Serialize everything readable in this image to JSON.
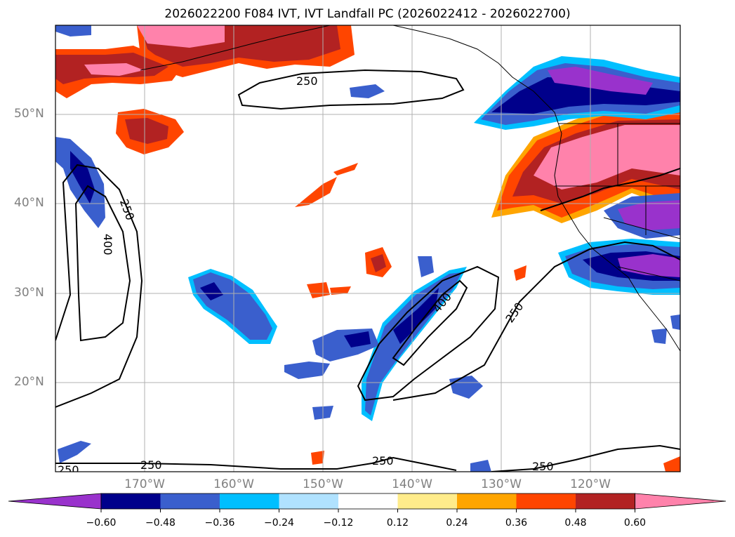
{
  "title": "2026022200 F084 IVT, IVT Landfall PC (2026022412 - 2026022700)",
  "map": {
    "lon_range": [
      -180,
      -110
    ],
    "lat_range": [
      10,
      60
    ],
    "lat_ticks": [
      "50°N",
      "40°N",
      "30°N",
      "20°N"
    ],
    "lon_ticks": [
      "170°W",
      "160°W",
      "150°W",
      "140°W",
      "130°W",
      "120°W"
    ],
    "contour_labels": [
      "250",
      "250",
      "400",
      "250",
      "400",
      "250",
      "250",
      "250",
      "250"
    ]
  },
  "colorbar": {
    "ticks": [
      "−0.60",
      "−0.48",
      "−0.36",
      "−0.24",
      "−0.12",
      "0.12",
      "0.24",
      "0.36",
      "0.48",
      "0.60"
    ],
    "colors": [
      "#9932CC",
      "#00008B",
      "#3A5FCD",
      "#00BFFF",
      "#B0E2FF",
      "#FFFFFF",
      "#FFEC8B",
      "#FFA500",
      "#FF4500",
      "#B22222",
      "#FF82AB"
    ]
  },
  "colors": {
    "grid": "#b0b0b0",
    "contour": "#000000",
    "axis_label": "#808080"
  }
}
